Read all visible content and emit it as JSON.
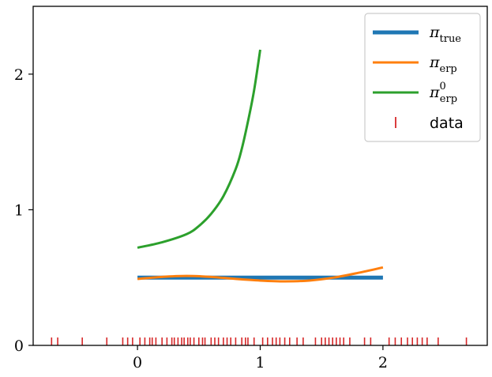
{
  "chart_data": {
    "type": "line",
    "xlim": [
      -0.85,
      2.85
    ],
    "ylim": [
      0,
      2.5
    ],
    "x_ticks": [
      0,
      1,
      2
    ],
    "x_tick_labels": [
      "0",
      "1",
      "2"
    ],
    "y_ticks": [
      0,
      1,
      2
    ],
    "y_tick_labels": [
      "0",
      "1",
      "2"
    ],
    "grid": false,
    "legend_position": "top-right",
    "series": [
      {
        "name": "π_true",
        "legend": {
          "base": "π",
          "sub": "true",
          "sup": ""
        },
        "color": "#1f77b4",
        "line_width": "thick",
        "x": [
          0,
          2
        ],
        "y": [
          0.5,
          0.5
        ]
      },
      {
        "name": "π_erp",
        "legend": {
          "base": "π",
          "sub": "erp",
          "sup": ""
        },
        "color": "#ff7f0e",
        "line_width": "normal",
        "x": [
          0,
          0.2,
          0.4,
          0.6,
          0.8,
          1.0,
          1.2,
          1.4,
          1.6,
          1.8,
          2.0
        ],
        "y": [
          0.49,
          0.505,
          0.512,
          0.505,
          0.49,
          0.478,
          0.472,
          0.478,
          0.5,
          0.535,
          0.575
        ]
      },
      {
        "name": "π⁰_erp",
        "legend": {
          "base": "π",
          "sub": "erp",
          "sup": "0"
        },
        "color": "#2ca02c",
        "line_width": "normal",
        "x": [
          0,
          0.2,
          0.4,
          0.5,
          0.6,
          0.7,
          0.8,
          0.85,
          0.9,
          0.95,
          1.0
        ],
        "y": [
          0.72,
          0.76,
          0.82,
          0.88,
          0.97,
          1.1,
          1.3,
          1.45,
          1.65,
          1.88,
          2.18
        ]
      }
    ],
    "rug": {
      "name": "data",
      "color": "#d62728",
      "x": [
        -0.7,
        -0.65,
        -0.45,
        -0.25,
        -0.12,
        -0.08,
        -0.04,
        0.02,
        0.06,
        0.1,
        0.12,
        0.15,
        0.2,
        0.24,
        0.28,
        0.3,
        0.33,
        0.36,
        0.38,
        0.41,
        0.43,
        0.46,
        0.5,
        0.53,
        0.55,
        0.6,
        0.63,
        0.66,
        0.7,
        0.73,
        0.76,
        0.8,
        0.85,
        0.88,
        0.9,
        0.95,
        1.02,
        1.06,
        1.1,
        1.13,
        1.16,
        1.2,
        1.24,
        1.3,
        1.35,
        1.45,
        1.5,
        1.53,
        1.56,
        1.59,
        1.62,
        1.65,
        1.68,
        1.73,
        1.85,
        1.9,
        2.05,
        2.1,
        2.15,
        2.2,
        2.24,
        2.28,
        2.32,
        2.36,
        2.45,
        2.68
      ]
    }
  }
}
